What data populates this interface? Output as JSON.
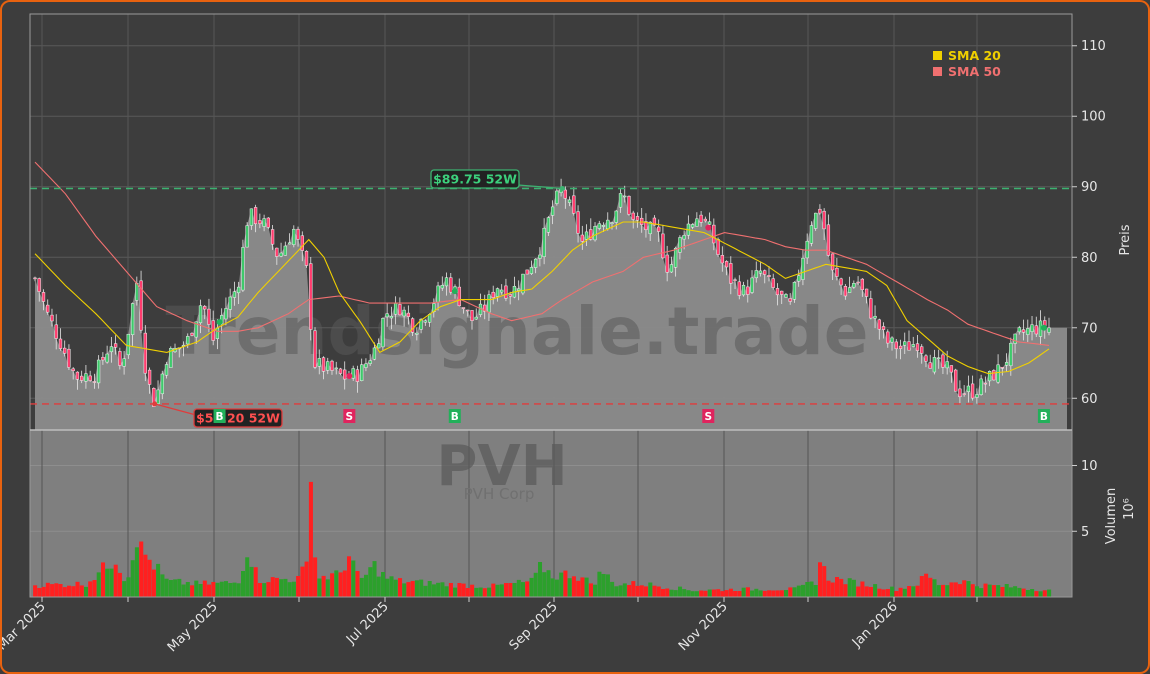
{
  "chart_data": {
    "type": "candlestick",
    "watermark": {
      "site": "Trendsignale.trade",
      "ticker": "PVH",
      "company": "PVH Corp"
    },
    "price_axis": {
      "label": "Preis",
      "ticks": [
        60,
        70,
        80,
        90,
        100,
        110
      ],
      "range": [
        55.5,
        114.5
      ]
    },
    "volume_axis": {
      "label": "Volumen",
      "exponent_label": "10⁶",
      "ticks": [
        5,
        10
      ],
      "range": [
        0,
        12.7
      ]
    },
    "x_ticks": [
      "Mar 2025",
      "May 2025",
      "Jul 2025",
      "Sep 2025",
      "Nov 2025",
      "Jan 2026"
    ],
    "legend": [
      {
        "label": "SMA 20",
        "color": "#f0d000"
      },
      {
        "label": "SMA 50",
        "color": "#f07070"
      }
    ],
    "colors": {
      "up": "#2ca02c",
      "down": "#ff2020",
      "sma20": "#f0d000",
      "sma50": "#f07070",
      "high_line": "#3cb371",
      "low_line": "#e03c3c"
    },
    "high_52w": {
      "label": "$89.75 52W",
      "value": 89.75
    },
    "low_52w": {
      "label": "$59.20 52W",
      "value": 59.2
    },
    "signals": [
      {
        "type": "B",
        "position": 0.182
      },
      {
        "type": "S",
        "position": 0.31
      },
      {
        "type": "B",
        "position": 0.414
      },
      {
        "type": "S",
        "position": 0.664
      },
      {
        "type": "B",
        "position": 0.995
      }
    ],
    "price_keyframes": [
      [
        0.0,
        77
      ],
      [
        0.012,
        72
      ],
      [
        0.025,
        68
      ],
      [
        0.04,
        63
      ],
      [
        0.06,
        63.5
      ],
      [
        0.075,
        68
      ],
      [
        0.085,
        64
      ],
      [
        0.095,
        72
      ],
      [
        0.1,
        77
      ],
      [
        0.11,
        63
      ],
      [
        0.118,
        59.2
      ],
      [
        0.13,
        66
      ],
      [
        0.15,
        68
      ],
      [
        0.165,
        74
      ],
      [
        0.175,
        68
      ],
      [
        0.185,
        72
      ],
      [
        0.2,
        76
      ],
      [
        0.21,
        86
      ],
      [
        0.225,
        85
      ],
      [
        0.24,
        80
      ],
      [
        0.255,
        84
      ],
      [
        0.268,
        78
      ],
      [
        0.275,
        65
      ],
      [
        0.29,
        64
      ],
      [
        0.305,
        63
      ],
      [
        0.32,
        63.5
      ],
      [
        0.335,
        67
      ],
      [
        0.345,
        72
      ],
      [
        0.36,
        73
      ],
      [
        0.375,
        70
      ],
      [
        0.39,
        73
      ],
      [
        0.405,
        77
      ],
      [
        0.415,
        75
      ],
      [
        0.43,
        71
      ],
      [
        0.445,
        73
      ],
      [
        0.455,
        76
      ],
      [
        0.47,
        75
      ],
      [
        0.485,
        78
      ],
      [
        0.5,
        82
      ],
      [
        0.51,
        87
      ],
      [
        0.52,
        89.75
      ],
      [
        0.53,
        86
      ],
      [
        0.54,
        82
      ],
      [
        0.555,
        85
      ],
      [
        0.57,
        86
      ],
      [
        0.58,
        89
      ],
      [
        0.59,
        85
      ],
      [
        0.605,
        84
      ],
      [
        0.615,
        83
      ],
      [
        0.625,
        78
      ],
      [
        0.64,
        84
      ],
      [
        0.655,
        86
      ],
      [
        0.665,
        84
      ],
      [
        0.675,
        80
      ],
      [
        0.685,
        77
      ],
      [
        0.7,
        75
      ],
      [
        0.715,
        78
      ],
      [
        0.73,
        75
      ],
      [
        0.745,
        73
      ],
      [
        0.755,
        79
      ],
      [
        0.765,
        85
      ],
      [
        0.775,
        87
      ],
      [
        0.785,
        78
      ],
      [
        0.8,
        75
      ],
      [
        0.81,
        77
      ],
      [
        0.825,
        72
      ],
      [
        0.84,
        68
      ],
      [
        0.855,
        67
      ],
      [
        0.87,
        68
      ],
      [
        0.885,
        65
      ],
      [
        0.9,
        64
      ],
      [
        0.91,
        61
      ],
      [
        0.925,
        61
      ],
      [
        0.935,
        62
      ],
      [
        0.95,
        64
      ],
      [
        0.96,
        66
      ],
      [
        0.97,
        69
      ],
      [
        0.985,
        70
      ],
      [
        1.0,
        70
      ]
    ],
    "sma20_keyframes": [
      [
        0.0,
        80.5
      ],
      [
        0.03,
        76
      ],
      [
        0.06,
        72
      ],
      [
        0.09,
        67.5
      ],
      [
        0.11,
        67
      ],
      [
        0.13,
        66.5
      ],
      [
        0.16,
        68
      ],
      [
        0.18,
        70
      ],
      [
        0.2,
        71.5
      ],
      [
        0.22,
        75
      ],
      [
        0.24,
        78
      ],
      [
        0.26,
        81
      ],
      [
        0.27,
        82.5
      ],
      [
        0.285,
        80
      ],
      [
        0.3,
        75
      ],
      [
        0.32,
        71
      ],
      [
        0.34,
        66.5
      ],
      [
        0.36,
        68
      ],
      [
        0.38,
        71
      ],
      [
        0.4,
        73
      ],
      [
        0.42,
        74
      ],
      [
        0.45,
        74
      ],
      [
        0.47,
        75
      ],
      [
        0.49,
        75.5
      ],
      [
        0.51,
        78
      ],
      [
        0.53,
        81
      ],
      [
        0.55,
        83
      ],
      [
        0.58,
        85
      ],
      [
        0.6,
        85
      ],
      [
        0.62,
        84.5
      ],
      [
        0.64,
        84
      ],
      [
        0.66,
        83.5
      ],
      [
        0.68,
        82
      ],
      [
        0.7,
        80.5
      ],
      [
        0.72,
        79
      ],
      [
        0.74,
        77
      ],
      [
        0.76,
        78
      ],
      [
        0.78,
        79
      ],
      [
        0.8,
        78.5
      ],
      [
        0.82,
        78
      ],
      [
        0.84,
        76
      ],
      [
        0.86,
        71
      ],
      [
        0.88,
        68.5
      ],
      [
        0.9,
        66
      ],
      [
        0.92,
        64.5
      ],
      [
        0.94,
        63.5
      ],
      [
        0.96,
        63.8
      ],
      [
        0.98,
        65
      ],
      [
        1.0,
        67
      ]
    ],
    "sma50_keyframes": [
      [
        0.0,
        93.5
      ],
      [
        0.03,
        89
      ],
      [
        0.06,
        83
      ],
      [
        0.09,
        78
      ],
      [
        0.12,
        73
      ],
      [
        0.15,
        71
      ],
      [
        0.18,
        69.5
      ],
      [
        0.2,
        69.5
      ],
      [
        0.22,
        70
      ],
      [
        0.25,
        72
      ],
      [
        0.27,
        74
      ],
      [
        0.3,
        74.5
      ],
      [
        0.33,
        73.5
      ],
      [
        0.36,
        73.5
      ],
      [
        0.39,
        73.5
      ],
      [
        0.42,
        74
      ],
      [
        0.45,
        72
      ],
      [
        0.47,
        71
      ],
      [
        0.5,
        72
      ],
      [
        0.52,
        74
      ],
      [
        0.55,
        76.5
      ],
      [
        0.58,
        78
      ],
      [
        0.6,
        80
      ],
      [
        0.63,
        81
      ],
      [
        0.66,
        82.5
      ],
      [
        0.68,
        83.5
      ],
      [
        0.7,
        83
      ],
      [
        0.72,
        82.5
      ],
      [
        0.74,
        81.5
      ],
      [
        0.76,
        81
      ],
      [
        0.78,
        81
      ],
      [
        0.8,
        80
      ],
      [
        0.82,
        79
      ],
      [
        0.85,
        76.5
      ],
      [
        0.88,
        74
      ],
      [
        0.9,
        72.5
      ],
      [
        0.92,
        70.5
      ],
      [
        0.95,
        69
      ],
      [
        0.97,
        68
      ],
      [
        1.0,
        67.5
      ]
    ],
    "volume_keyframes": [
      [
        0.0,
        0.9
      ],
      [
        0.05,
        1.0
      ],
      [
        0.08,
        3.0
      ],
      [
        0.09,
        1.0
      ],
      [
        0.095,
        2.6
      ],
      [
        0.098,
        5.0
      ],
      [
        0.105,
        3.5
      ],
      [
        0.12,
        2.2
      ],
      [
        0.13,
        1.2
      ],
      [
        0.16,
        1.0
      ],
      [
        0.2,
        1.1
      ],
      [
        0.21,
        3.8
      ],
      [
        0.22,
        1.3
      ],
      [
        0.26,
        1.4
      ],
      [
        0.27,
        2.8
      ],
      [
        0.272,
        11.8
      ],
      [
        0.275,
        3.5
      ],
      [
        0.28,
        1.5
      ],
      [
        0.3,
        1.7
      ],
      [
        0.31,
        3.2
      ],
      [
        0.32,
        1.2
      ],
      [
        0.335,
        2.4
      ],
      [
        0.345,
        1.5
      ],
      [
        0.36,
        1.2
      ],
      [
        0.4,
        1.0
      ],
      [
        0.45,
        0.8
      ],
      [
        0.49,
        1.2
      ],
      [
        0.5,
        2.4
      ],
      [
        0.51,
        1.6
      ],
      [
        0.53,
        1.8
      ],
      [
        0.55,
        1.0
      ],
      [
        0.56,
        2.0
      ],
      [
        0.57,
        1.0
      ],
      [
        0.6,
        1.0
      ],
      [
        0.65,
        0.5
      ],
      [
        0.7,
        0.6
      ],
      [
        0.75,
        0.6
      ],
      [
        0.77,
        1.2
      ],
      [
        0.775,
        3.0
      ],
      [
        0.78,
        1.5
      ],
      [
        0.8,
        1.2
      ],
      [
        0.85,
        0.6
      ],
      [
        0.87,
        1.0
      ],
      [
        0.88,
        1.7
      ],
      [
        0.89,
        1.0
      ],
      [
        0.9,
        1.0
      ],
      [
        0.91,
        1.3
      ],
      [
        0.93,
        0.9
      ],
      [
        0.96,
        0.8
      ],
      [
        1.0,
        0.5
      ]
    ]
  }
}
